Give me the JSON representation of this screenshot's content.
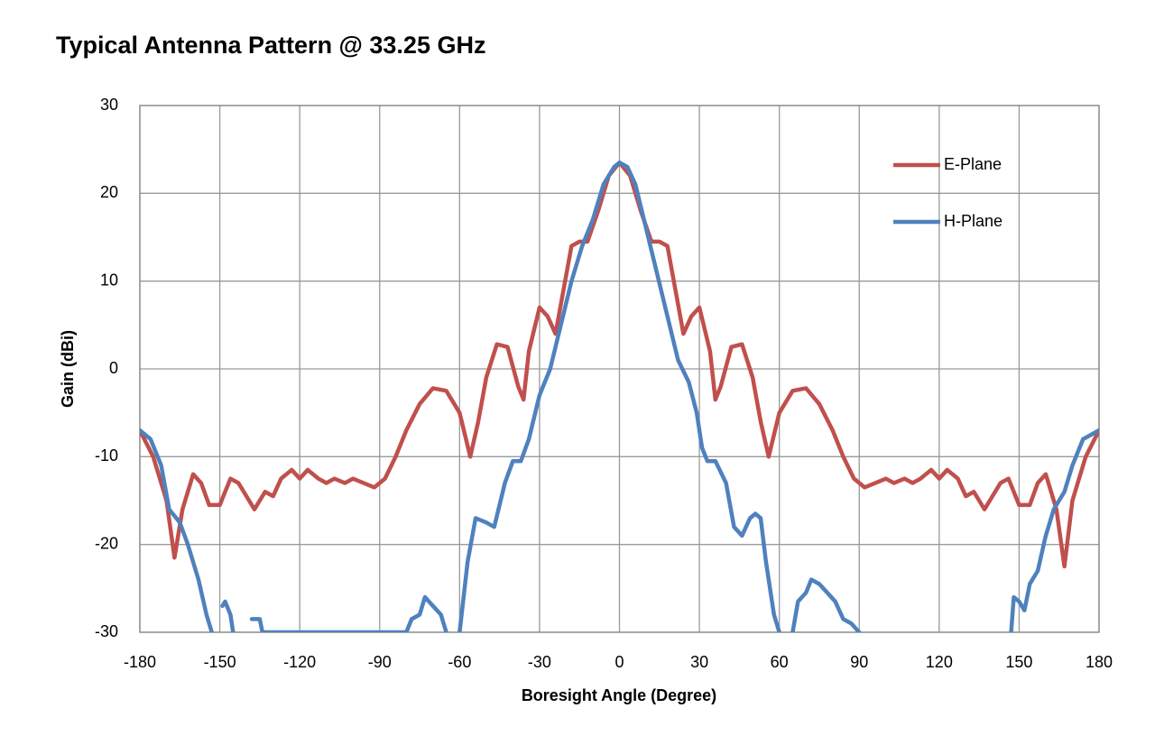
{
  "chart_data": {
    "type": "line",
    "title": "Typical Antenna Pattern @ 33.25 GHz",
    "xlabel": "Boresight Angle (Degree)",
    "ylabel": "Gain (dBi)",
    "xlim": [
      -180,
      180
    ],
    "ylim": [
      -30,
      30
    ],
    "xticks": [
      -180,
      -150,
      -120,
      -90,
      -60,
      -30,
      0,
      30,
      60,
      90,
      120,
      150,
      180
    ],
    "yticks": [
      -30,
      -20,
      -10,
      0,
      10,
      20,
      30
    ],
    "grid": true,
    "legend": "upper right",
    "series": [
      {
        "name": "E-Plane",
        "color": "#c0504d",
        "x": [
          -180,
          -175,
          -170,
          -167,
          -164,
          -160,
          -157,
          -154,
          -150,
          -146,
          -143,
          -140,
          -137,
          -133,
          -130,
          -127,
          -123,
          -120,
          -117,
          -113,
          -110,
          -107,
          -103,
          -100,
          -96,
          -92,
          -88,
          -84,
          -80,
          -75,
          -70,
          -65,
          -60,
          -56,
          -53,
          -50,
          -46,
          -42,
          -38,
          -36,
          -34,
          -30,
          -27,
          -24,
          -21,
          -18,
          -15,
          -12,
          -8,
          -4,
          0,
          4,
          8,
          12,
          15,
          18,
          21,
          24,
          27,
          30,
          34,
          36,
          38,
          42,
          46,
          50,
          53,
          56,
          60,
          65,
          70,
          75,
          80,
          84,
          88,
          92,
          96,
          100,
          103,
          107,
          110,
          113,
          117,
          120,
          123,
          127,
          130,
          133,
          137,
          140,
          143,
          146,
          150,
          154,
          157,
          160,
          164,
          167,
          170,
          175,
          180
        ],
        "values": [
          -7,
          -10,
          -15,
          -21.5,
          -16,
          -12,
          -13,
          -15.5,
          -15.5,
          -12.5,
          -13,
          -14.5,
          -16,
          -14,
          -14.5,
          -12.5,
          -11.5,
          -12.5,
          -11.5,
          -12.5,
          -13,
          -12.5,
          -13,
          -12.5,
          -13,
          -13.5,
          -12.5,
          -10,
          -7,
          -4,
          -2.2,
          -2.5,
          -5,
          -10,
          -6,
          -1,
          2.8,
          2.5,
          -2,
          -3.5,
          2,
          7,
          6,
          4,
          9,
          14,
          14.5,
          14.5,
          18,
          22,
          23.5,
          22,
          18,
          14.5,
          14.5,
          14,
          9,
          4,
          6,
          7,
          2,
          -3.5,
          -2,
          2.5,
          2.8,
          -1,
          -6,
          -10,
          -5,
          -2.5,
          -2.2,
          -4,
          -7,
          -10,
          -12.5,
          -13.5,
          -13,
          -12.5,
          -13,
          -12.5,
          -13,
          -12.5,
          -11.5,
          -12.5,
          -11.5,
          -12.5,
          -14.5,
          -14,
          -16,
          -14.5,
          -13,
          -12.5,
          -15.5,
          -15.5,
          -13,
          -12,
          -16,
          -22.5,
          -15,
          -10,
          -7
        ]
      },
      {
        "name": "H-Plane",
        "color": "#4f81bd",
        "x": [
          -180,
          -176,
          -172,
          -169,
          -165,
          -162,
          -158,
          -155,
          -153,
          -151,
          -149,
          -148,
          -146,
          -145,
          -143,
          -138,
          -135,
          -134,
          -80,
          -78,
          -75,
          -73,
          -70,
          -67,
          -65,
          -63,
          -60,
          -57,
          -54,
          -50,
          -47,
          -43,
          -40,
          -37,
          -34,
          -30,
          -26,
          -22,
          -18,
          -14,
          -10,
          -6,
          -2,
          0,
          3,
          6,
          10,
          14,
          18,
          22,
          26,
          29,
          31,
          33,
          36,
          40,
          43,
          46,
          49,
          51,
          53,
          55,
          58,
          60,
          62,
          65,
          67,
          70,
          72,
          75,
          78,
          81,
          84,
          87,
          90,
          92,
          147,
          148,
          150,
          152,
          154,
          157,
          160,
          163,
          167,
          170,
          174,
          180
        ],
        "values": [
          -7,
          -8,
          -11,
          -16,
          -17.5,
          -20,
          -24,
          -28,
          -30,
          null,
          -27,
          -26.5,
          -28,
          -30,
          null,
          -28.5,
          -28.5,
          -30,
          -30,
          -28.5,
          -28,
          -26,
          -27,
          -28,
          -30,
          null,
          -30,
          -22,
          -17,
          -17.5,
          -18,
          -13,
          -10.5,
          -10.5,
          -8,
          -3,
          0,
          5,
          10,
          14,
          17,
          21,
          23,
          23.5,
          23,
          21,
          16,
          11,
          6,
          1,
          -1.5,
          -5,
          -9,
          -10.5,
          -10.5,
          -13,
          -18,
          -19,
          -17,
          -16.5,
          -17,
          -22,
          -28,
          -30,
          null,
          -30,
          -26.5,
          -25.5,
          -24,
          -24.5,
          -25.5,
          -26.5,
          -28.5,
          -29,
          -30,
          null,
          -30,
          -26,
          -26.5,
          -27.5,
          -24.5,
          -23,
          -19,
          -16,
          -14,
          -11,
          -8,
          -7
        ]
      }
    ]
  }
}
